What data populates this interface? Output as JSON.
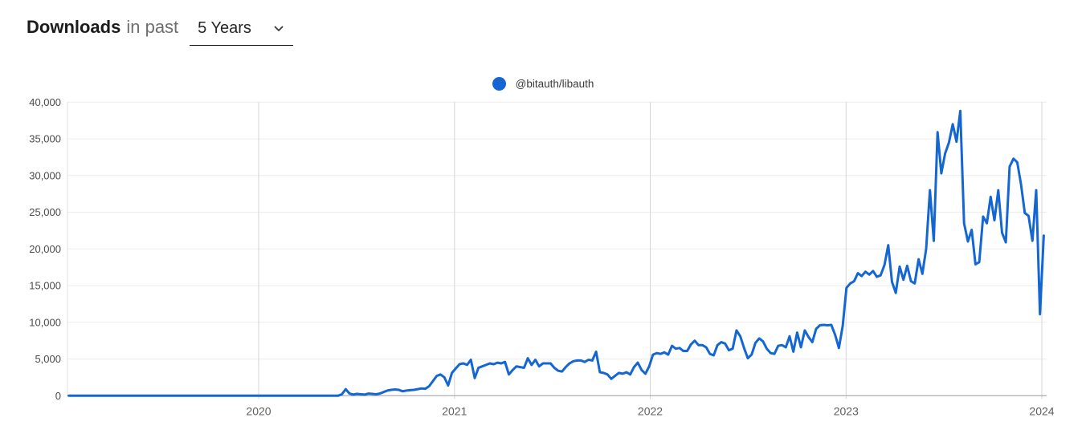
{
  "header": {
    "title_bold": "Downloads",
    "title_rest": "in past",
    "period_select": {
      "selected": "5 Years",
      "icon": "chevron-down-icon"
    }
  },
  "legend": {
    "series_label": "@bitauth/libauth",
    "dot_color": "#1467d3"
  },
  "chart_data": {
    "type": "line",
    "title": "Downloads in past 5 Years",
    "xlabel": "",
    "ylabel": "",
    "x_ticks": [
      2020,
      2021,
      2022,
      2023,
      2024
    ],
    "x_start_year": 2019.03,
    "x_end_year": 2024.01,
    "y_ticks": [
      0,
      5000,
      10000,
      15000,
      20000,
      25000,
      30000,
      35000,
      40000
    ],
    "ylim": [
      0,
      40000
    ],
    "grid": true,
    "legend_position": "top-center",
    "axis_colors": {
      "gridline": "#ececec",
      "year_line": "#d6d6d6",
      "plot_border": "#e0e0e0",
      "axis_line": "#9b9b9b",
      "tick_label": "#4c4c4c",
      "year_label": "#5f5f5f"
    },
    "series": [
      {
        "name": "@bitauth/libauth",
        "color": "#1467d3",
        "cadence": "weekly",
        "values": [
          0,
          0,
          0,
          0,
          0,
          0,
          0,
          0,
          0,
          0,
          0,
          0,
          0,
          0,
          0,
          0,
          0,
          0,
          0,
          0,
          0,
          0,
          0,
          0,
          0,
          0,
          0,
          0,
          0,
          0,
          0,
          0,
          0,
          0,
          0,
          0,
          0,
          0,
          0,
          0,
          0,
          0,
          0,
          0,
          0,
          0,
          0,
          0,
          0,
          0,
          0,
          0,
          0,
          0,
          0,
          0,
          0,
          0,
          0,
          0,
          0,
          0,
          0,
          0,
          0,
          0,
          0,
          0,
          0,
          0,
          0,
          0,
          200,
          900,
          300,
          150,
          250,
          200,
          150,
          300,
          250,
          200,
          300,
          500,
          700,
          800,
          850,
          800,
          600,
          700,
          750,
          800,
          900,
          1000,
          950,
          1300,
          2000,
          2700,
          2900,
          2500,
          1400,
          3100,
          3700,
          4300,
          4400,
          4200,
          4900,
          2400,
          3800,
          4000,
          4200,
          4400,
          4300,
          4500,
          4400,
          4600,
          2900,
          3500,
          4000,
          3900,
          3800,
          5100,
          4200,
          4900,
          4000,
          4400,
          4400,
          4400,
          3800,
          3400,
          3300,
          3900,
          4400,
          4700,
          4800,
          4800,
          4600,
          4900,
          4800,
          6000,
          3200,
          3100,
          2900,
          2300,
          2700,
          3100,
          3000,
          3200,
          2900,
          3900,
          4500,
          3500,
          3000,
          4000,
          5600,
          5800,
          5700,
          5900,
          5600,
          6800,
          6400,
          6500,
          6100,
          6100,
          7000,
          7500,
          6900,
          6900,
          6600,
          5700,
          5500,
          6900,
          7300,
          7100,
          6200,
          6400,
          8900,
          8100,
          6500,
          5100,
          5600,
          7200,
          7800,
          7400,
          6400,
          5800,
          5700,
          6800,
          6900,
          6600,
          8100,
          6000,
          8600,
          6600,
          8900,
          8000,
          7300,
          9100,
          9600,
          9650,
          9600,
          9650,
          8300,
          6500,
          9500,
          14700,
          15300,
          15600,
          16700,
          16300,
          16900,
          16500,
          17000,
          16200,
          16400,
          17800,
          20500,
          15500,
          14000,
          17600,
          15800,
          17700,
          15600,
          15300,
          18600,
          16600,
          20000,
          28000,
          21100,
          35900,
          30300,
          33000,
          34500,
          37000,
          34600,
          38800,
          23500,
          21000,
          22600,
          17900,
          18200,
          24400,
          23500,
          27100,
          23900,
          28000,
          22200,
          20900,
          31200,
          32300,
          31800,
          28800,
          24900,
          24500,
          21100,
          28000,
          11100,
          21800
        ]
      }
    ]
  }
}
